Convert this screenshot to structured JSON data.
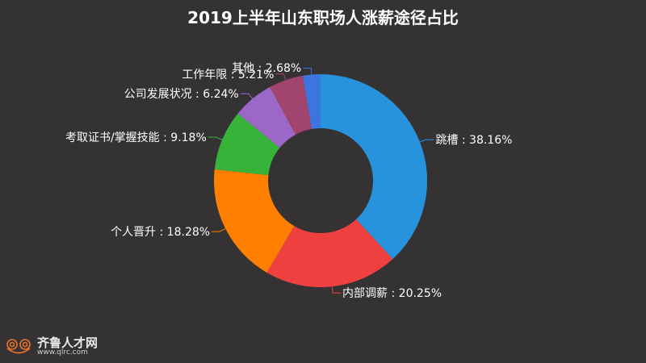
{
  "chart_data": {
    "type": "pie",
    "subtype": "donut",
    "title": "2019上半年山东职场人涨薪途径占比",
    "categories": [
      "跳槽",
      "内部调薪",
      "个人晋升",
      "考取证书/掌握技能",
      "公司发展状况",
      "工作年限",
      "其他"
    ],
    "values": [
      38.16,
      20.25,
      18.28,
      9.18,
      6.24,
      5.21,
      2.68
    ],
    "unit": "%",
    "colors": [
      "#2793dc",
      "#ef4040",
      "#ff8000",
      "#38b33a",
      "#9d67c8",
      "#a1456e",
      "#3c75e0"
    ],
    "labels": [
      "跳槽 : 38.16%",
      "内部调薪 : 20.25%",
      "个人晋升 : 18.28%",
      "考取证书/掌握技能 : 9.18%",
      "公司发展状况 : 6.24%",
      "工作年限 : 5.21%",
      "其他 : 2.68%"
    ],
    "legend": "none",
    "center": [
      397,
      224
    ],
    "outer_radius": 132,
    "inner_radius": 65
  },
  "logo": {
    "name": "齐鲁人才网",
    "url": "www.qlrc.com"
  }
}
